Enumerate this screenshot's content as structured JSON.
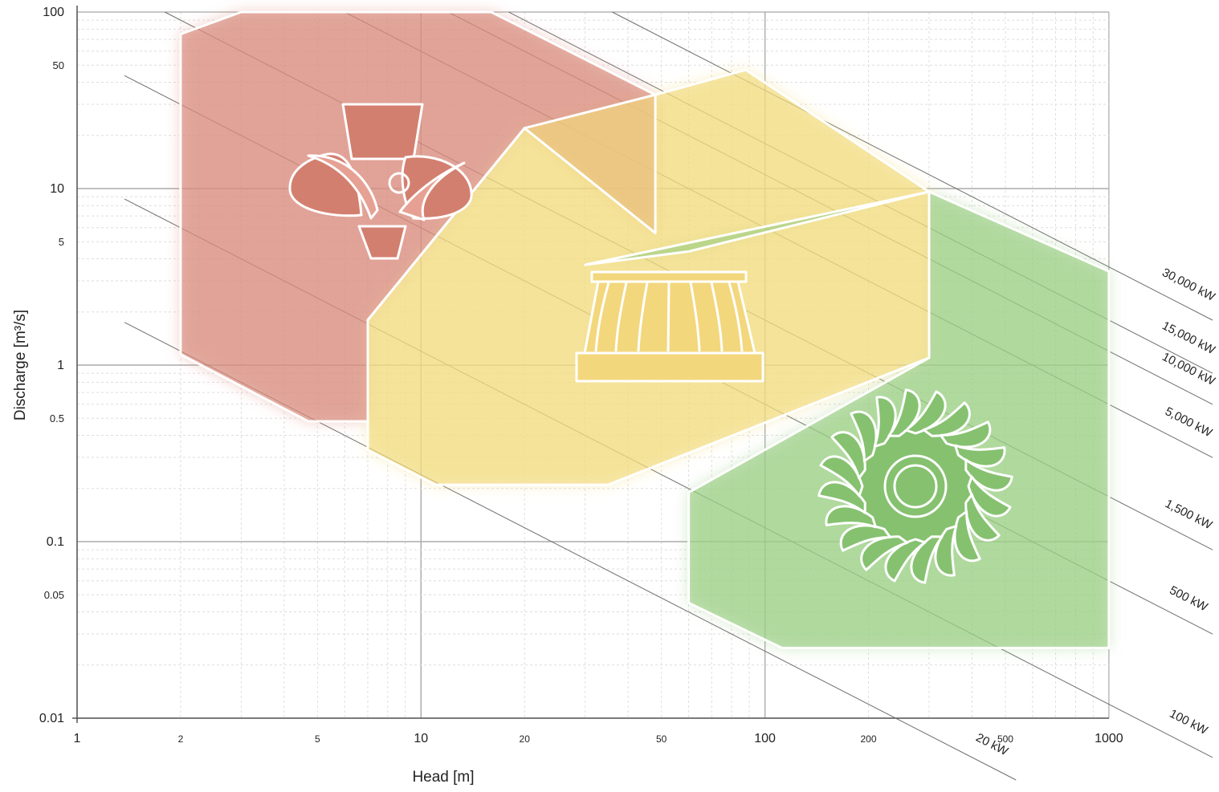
{
  "chart_data": {
    "type": "area",
    "title": "",
    "xlabel": "Head [m]",
    "ylabel": "Discharge [m³/s]",
    "x_scale": "log",
    "y_scale": "log",
    "xlim": [
      1,
      1000
    ],
    "ylim": [
      0.01,
      100
    ],
    "grid": true,
    "x_ticks": [
      {
        "value": 1,
        "label": "1",
        "major": true
      },
      {
        "value": 2,
        "label": "2",
        "major": false
      },
      {
        "value": 5,
        "label": "5",
        "major": false
      },
      {
        "value": 10,
        "label": "10",
        "major": true
      },
      {
        "value": 20,
        "label": "20",
        "major": false
      },
      {
        "value": 50,
        "label": "50",
        "major": false
      },
      {
        "value": 100,
        "label": "100",
        "major": true
      },
      {
        "value": 200,
        "label": "200",
        "major": false
      },
      {
        "value": 500,
        "label": "500",
        "major": false
      },
      {
        "value": 1000,
        "label": "1000",
        "major": true
      }
    ],
    "y_ticks": [
      {
        "value": 100,
        "label": "100",
        "major": true
      },
      {
        "value": 50,
        "label": "50",
        "major": false
      },
      {
        "value": 10,
        "label": "10",
        "major": true
      },
      {
        "value": 5,
        "label": "5",
        "major": false
      },
      {
        "value": 1,
        "label": "1",
        "major": true
      },
      {
        "value": 0.5,
        "label": "0.5",
        "major": false
      },
      {
        "value": 0.1,
        "label": "0.1",
        "major": true
      },
      {
        "value": 0.05,
        "label": "0.05",
        "major": false
      },
      {
        "value": 0.01,
        "label": "0.01",
        "major": true
      }
    ],
    "power_lines": [
      {
        "label": "30,000 kW",
        "kw": 30000
      },
      {
        "label": "15,000 kW",
        "kw": 15000
      },
      {
        "label": "10,000 kW",
        "kw": 10000
      },
      {
        "label": "5,000 kW",
        "kw": 5000
      },
      {
        "label": "1,500 kW",
        "kw": 1500
      },
      {
        "label": "500 kW",
        "kw": 500
      },
      {
        "label": "100 kW",
        "kw": 100
      },
      {
        "label": "20 kW",
        "kw": 20
      }
    ],
    "regions": [
      {
        "icon": "kaplan-turbine-icon",
        "color": "#d98b7c",
        "points": [
          [
            2,
            75
          ],
          [
            3,
            100
          ],
          [
            16,
            100
          ],
          [
            48,
            34
          ],
          [
            48,
            5.6
          ],
          [
            20,
            22
          ],
          [
            7,
            1.8
          ],
          [
            7,
            0.48
          ],
          [
            4.7,
            0.48
          ],
          [
            2,
            1.15
          ]
        ]
      },
      {
        "icon": "francis-turbine-icon",
        "color": "#f2db7e",
        "points": [
          [
            7,
            1.8
          ],
          [
            20,
            22
          ],
          [
            48,
            34
          ],
          [
            88,
            47
          ],
          [
            300,
            9.6
          ],
          [
            300,
            1.1
          ],
          [
            35,
            0.21
          ],
          [
            11,
            0.21
          ],
          [
            7,
            0.33
          ]
        ]
      },
      {
        "icon": "pelton-turbine-icon",
        "color": "#9bcf84",
        "points": [
          [
            30,
            3.7
          ],
          [
            60,
            4.4
          ],
          [
            300,
            9.6
          ],
          [
            1000,
            3.4
          ],
          [
            1000,
            0.025
          ],
          [
            112,
            0.025
          ],
          [
            60,
            0.045
          ],
          [
            60,
            0.19
          ],
          [
            300,
            1.1
          ],
          [
            300,
            9.6
          ]
        ]
      }
    ]
  }
}
